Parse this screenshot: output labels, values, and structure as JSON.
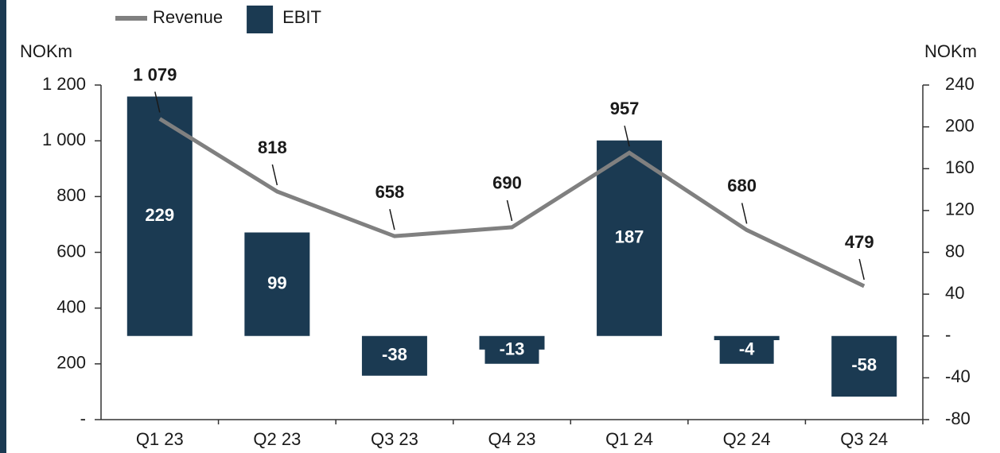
{
  "chart_data": {
    "type": "bar-line",
    "y_axis_label": "NOKm",
    "y2_axis_label": "NOKm",
    "categories": [
      "Q1 23",
      "Q2 23",
      "Q3 23",
      "Q4 23",
      "Q1 24",
      "Q2 24",
      "Q3 24"
    ],
    "series": [
      {
        "name": "Revenue",
        "type": "line",
        "color": "#808080",
        "values": [
          1079,
          818,
          658,
          690,
          957,
          680,
          479
        ],
        "value_labels": [
          "1 079",
          "818",
          "658",
          "690",
          "957",
          "680",
          "479"
        ]
      },
      {
        "name": "EBIT",
        "type": "bar",
        "axis": "y2",
        "color": "#1b3a52",
        "values": [
          229,
          99,
          -38,
          -13,
          187,
          -4,
          -58
        ]
      }
    ],
    "ylim": [
      0,
      1200
    ],
    "yticks": [
      {
        "value": 0,
        "label": "-"
      },
      200,
      400,
      600,
      800,
      {
        "value": 1000,
        "label": "1 000"
      },
      {
        "value": 1200,
        "label": "1 200"
      }
    ],
    "y2lim": [
      -80,
      240
    ],
    "y2ticks": [
      -80,
      -40,
      {
        "value": 0,
        "label": "-"
      },
      40,
      80,
      120,
      160,
      200,
      240
    ],
    "legend": "top-left"
  }
}
